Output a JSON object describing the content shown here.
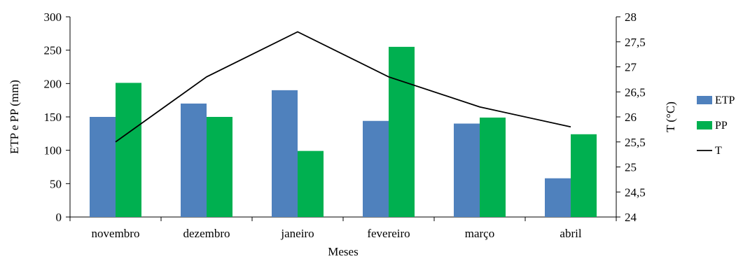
{
  "chart_data": {
    "type": "bar",
    "categories": [
      "novembro",
      "dezembro",
      "janeiro",
      "fevereiro",
      "março",
      "abril"
    ],
    "series": [
      {
        "name": "ETP",
        "type": "bar",
        "axis": "left",
        "color": "#4F81BD",
        "values": [
          150,
          170,
          190,
          144,
          140,
          58
        ]
      },
      {
        "name": "PP",
        "type": "bar",
        "axis": "left",
        "color": "#00B050",
        "values": [
          201,
          150,
          99,
          255,
          149,
          124
        ]
      },
      {
        "name": "T",
        "type": "line",
        "axis": "right",
        "color": "#000000",
        "values": [
          25.5,
          26.8,
          27.7,
          26.8,
          26.2,
          25.8
        ]
      }
    ],
    "xlabel": "Meses",
    "ylabel": "ETP e PP (mm)",
    "y2label": "T (°C)",
    "ylim": [
      0,
      300
    ],
    "yticks": [
      "0",
      "50",
      "100",
      "150",
      "200",
      "250",
      "300"
    ],
    "y2lim": [
      24,
      28
    ],
    "y2ticks": [
      "24",
      "24,5",
      "25",
      "25,5",
      "26",
      "26,5",
      "27",
      "27,5",
      "28"
    ],
    "grid": false,
    "legend": "right"
  }
}
